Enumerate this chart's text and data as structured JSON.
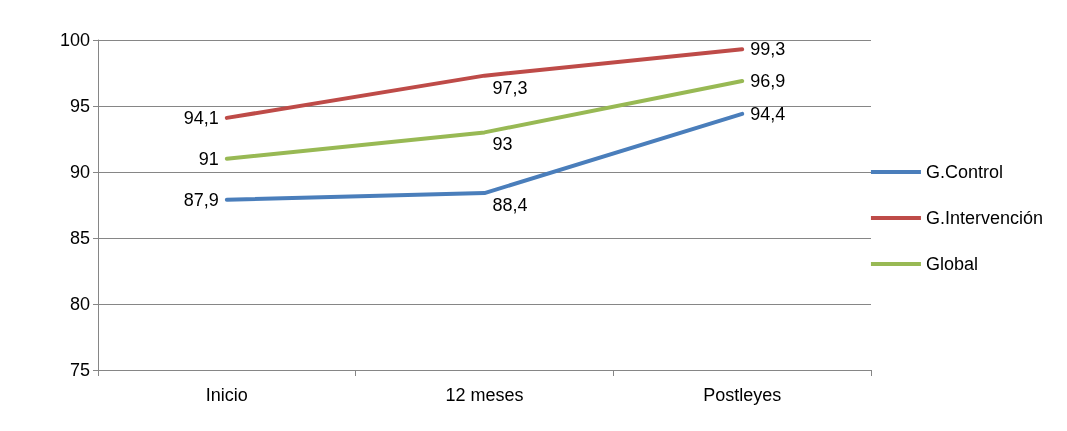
{
  "chart_data": {
    "type": "line",
    "categories": [
      "Inicio",
      "12 meses",
      "Postleyes"
    ],
    "series": [
      {
        "name": "G.Control",
        "color": "#4a7ebb",
        "values": [
          87.9,
          88.4,
          94.4
        ],
        "value_labels": [
          "87,9",
          "88,4",
          "94,4"
        ]
      },
      {
        "name": "G.Intervención",
        "color": "#be4b48",
        "values": [
          94.1,
          97.3,
          99.3
        ],
        "value_labels": [
          "94,1",
          "97,3",
          "99,3"
        ]
      },
      {
        "name": "Global",
        "color": "#98b954",
        "values": [
          91,
          93,
          96.9
        ],
        "value_labels": [
          "91",
          "93",
          "96,9"
        ]
      }
    ],
    "ylim": [
      75,
      100
    ],
    "yticks": [
      75,
      80,
      85,
      90,
      95,
      100
    ],
    "grid": "y",
    "legend": "right",
    "marker": "none",
    "line_style": "solid"
  }
}
